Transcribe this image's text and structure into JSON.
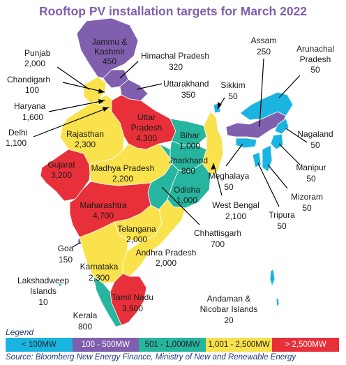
{
  "title": "Rooftop PV installation targets for March 2022",
  "colors": {
    "lt_100": "#19b5e0",
    "100_500": "#7f5fae",
    "501_1000": "#26b59e",
    "1001_2500": "#f9e24b",
    "gt_2500": "#e8303a",
    "title": "#7f5fae",
    "source": "#1f3b7a"
  },
  "regions": [
    {
      "name": "Jammu & Kashmir",
      "value": "450",
      "category": "100 - 500MW"
    },
    {
      "name": "Himachal Pradesh",
      "value": "320",
      "category": "100 - 500MW"
    },
    {
      "name": "Punjab",
      "value": "2,000",
      "category": "1,001 - 2,500MW"
    },
    {
      "name": "Chandigarh",
      "value": "100",
      "category": "100 - 500MW"
    },
    {
      "name": "Uttarakhand",
      "value": "350",
      "category": "100 - 500MW"
    },
    {
      "name": "Haryana",
      "value": "1,600",
      "category": "1,001 - 2,500MW"
    },
    {
      "name": "Delhi",
      "value": "1,100",
      "category": "1,001 - 2,500MW"
    },
    {
      "name": "Rajasthan",
      "value": "2,300",
      "category": "1,001 - 2,500MW"
    },
    {
      "name": "Uttar Pradesh",
      "value": "4,300",
      "category": "> 2,500MW"
    },
    {
      "name": "Bihar",
      "value": "1,000",
      "category": "501 - 1,000MW"
    },
    {
      "name": "Sikkim",
      "value": "50",
      "category": "< 100MW"
    },
    {
      "name": "Assam",
      "value": "250",
      "category": "100 - 500MW"
    },
    {
      "name": "Arunachal Pradesh",
      "value": "50",
      "category": "< 100MW"
    },
    {
      "name": "Nagaland",
      "value": "50",
      "category": "< 100MW"
    },
    {
      "name": "Manipur",
      "value": "50",
      "category": "< 100MW"
    },
    {
      "name": "Mizoram",
      "value": "50",
      "category": "< 100MW"
    },
    {
      "name": "Tripura",
      "value": "50",
      "category": "< 100MW"
    },
    {
      "name": "Meghalaya",
      "value": "50",
      "category": "< 100MW"
    },
    {
      "name": "Gujarat",
      "value": "3,200",
      "category": "> 2,500MW"
    },
    {
      "name": "Madhya Pradesh",
      "value": "2,200",
      "category": "1,001 - 2,500MW"
    },
    {
      "name": "Jharkhand",
      "value": "800",
      "category": "501 - 1,000MW"
    },
    {
      "name": "West Bengal",
      "value": "2,100",
      "category": "1,001 - 2,500MW"
    },
    {
      "name": "Odisha",
      "value": "1,000",
      "category": "501 - 1,000MW"
    },
    {
      "name": "Maharashtra",
      "value": "4,700",
      "category": "> 2,500MW"
    },
    {
      "name": "Chhattisgarh",
      "value": "700",
      "category": "501 - 1,000MW"
    },
    {
      "name": "Telangana",
      "value": "2,000",
      "category": "1,001 - 2,500MW"
    },
    {
      "name": "Andhra Pradesh",
      "value": "2,000",
      "category": "1,001 - 2,500MW"
    },
    {
      "name": "Goa",
      "value": "150",
      "category": "100 - 500MW"
    },
    {
      "name": "Karnataka",
      "value": "2,300",
      "category": "1,001 - 2,500MW"
    },
    {
      "name": "Lakshadweep Islands",
      "value": "10",
      "category": "< 100MW"
    },
    {
      "name": "Tamil Nadu",
      "value": "3,500",
      "category": "> 2,500MW"
    },
    {
      "name": "Kerala",
      "value": "800",
      "category": "501 - 1,000MW"
    },
    {
      "name": "Andaman & Nicobar Islands",
      "value": "20",
      "category": "< 100MW"
    }
  ],
  "label_lines": {
    "jk_1": "Jammu &",
    "jk_2": "Kashmir",
    "hp": "Himachal Pradesh",
    "ap_1": "Arunachal",
    "ap_2": "Pradesh",
    "up_1": "Uttar",
    "up_2": "Pradesh",
    "lak_1": "Lakshadweep",
    "lak_2": "Islands",
    "an_1": "Andaman &",
    "an_2": "Nicobar Islands"
  },
  "legend": {
    "title": "Legend",
    "items": [
      "< 100MW",
      "100 - 500MW",
      "501 - 1,000MW",
      "1,001 - 2,500MW",
      "> 2,500MW"
    ]
  },
  "source": "Source: Bloomberg New Energy Finance, Ministry of New and Renewable Energy"
}
